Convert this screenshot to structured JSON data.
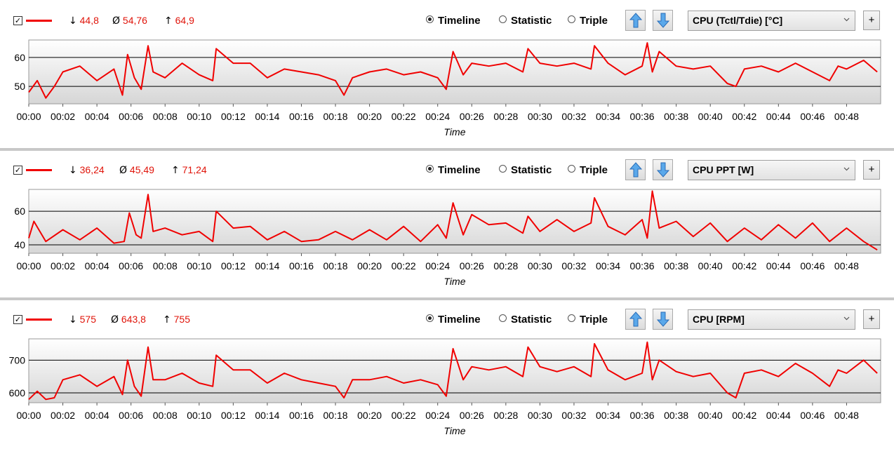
{
  "icons": {
    "checkbox": "check-icon",
    "up": "arrow-up-icon",
    "down": "arrow-down-icon",
    "dropdown": "chevron-down-icon"
  },
  "colors": {
    "series": "#f00000",
    "stat_values": "#e0140a"
  },
  "panels": [
    {
      "id": "cpu-temp",
      "stats": {
        "min_symbol": "↓",
        "min": "44,8",
        "avg_symbol": "Ø",
        "avg": "54,76",
        "max_symbol": "↑",
        "max": "64,9"
      },
      "modes": [
        {
          "label": "Timeline",
          "selected": true
        },
        {
          "label": "Statistic",
          "selected": false
        },
        {
          "label": "Triple",
          "selected": false
        }
      ],
      "sensor": "CPU (Tctl/Tdie) [°C]",
      "add_label": "+"
    },
    {
      "id": "cpu-ppt",
      "stats": {
        "min_symbol": "↓",
        "min": "36,24",
        "avg_symbol": "Ø",
        "avg": "45,49",
        "max_symbol": "↑",
        "max": "71,24"
      },
      "modes": [
        {
          "label": "Timeline",
          "selected": true
        },
        {
          "label": "Statistic",
          "selected": false
        },
        {
          "label": "Triple",
          "selected": false
        }
      ],
      "sensor": "CPU PPT [W]",
      "add_label": "+"
    },
    {
      "id": "cpu-rpm",
      "stats": {
        "min_symbol": "↓",
        "min": "575",
        "avg_symbol": "Ø",
        "avg": "643,8",
        "max_symbol": "↑",
        "max": "755"
      },
      "modes": [
        {
          "label": "Timeline",
          "selected": true
        },
        {
          "label": "Statistic",
          "selected": false
        },
        {
          "label": "Triple",
          "selected": false
        }
      ],
      "sensor": "CPU [RPM]",
      "add_label": "+"
    }
  ],
  "chart_data": [
    {
      "type": "line",
      "xlabel": "Time",
      "x_ticks": [
        "00:00",
        "00:02",
        "00:04",
        "00:06",
        "00:08",
        "00:10",
        "00:12",
        "00:14",
        "00:16",
        "00:18",
        "00:20",
        "00:22",
        "00:24",
        "00:26",
        "00:28",
        "00:30",
        "00:32",
        "00:34",
        "00:36",
        "00:38",
        "00:40",
        "00:42",
        "00:44",
        "00:46",
        "00:48"
      ],
      "xlim_minutes": [
        0,
        50
      ],
      "y_ticks": [
        50,
        60
      ],
      "ylim": [
        44,
        66
      ],
      "series": [
        {
          "color": "#f00000",
          "x_minutes": [
            0,
            0.5,
            1,
            1.5,
            2,
            3,
            4,
            5,
            5.5,
            5.8,
            6.2,
            6.6,
            7,
            7.3,
            8,
            9,
            10,
            10.8,
            11,
            12,
            13,
            14,
            15,
            16,
            17,
            18,
            18.5,
            19,
            20,
            21,
            22,
            23,
            24,
            24.5,
            24.9,
            25.5,
            26,
            27,
            28,
            29,
            29.3,
            30,
            31,
            32,
            33,
            33.2,
            34,
            35,
            36,
            36.3,
            36.6,
            37,
            38,
            39,
            40,
            41,
            41.5,
            42,
            43,
            44,
            45,
            46,
            47,
            47.5,
            48,
            49,
            49.8
          ],
          "values": [
            48,
            52,
            46,
            50,
            55,
            57,
            52,
            56,
            47,
            61,
            53,
            49,
            64,
            55,
            53,
            58,
            54,
            52,
            63,
            58,
            58,
            53,
            56,
            55,
            54,
            52,
            47,
            53,
            55,
            56,
            54,
            55,
            53,
            49,
            62,
            54,
            58,
            57,
            58,
            55,
            63,
            58,
            57,
            58,
            56,
            64,
            58,
            54,
            57,
            65,
            55,
            62,
            57,
            56,
            57,
            51,
            50,
            56,
            57,
            55,
            58,
            55,
            52,
            57,
            56,
            59,
            55
          ]
        }
      ]
    },
    {
      "type": "line",
      "xlabel": "Time",
      "x_ticks": [
        "00:00",
        "00:02",
        "00:04",
        "00:06",
        "00:08",
        "00:10",
        "00:12",
        "00:14",
        "00:16",
        "00:18",
        "00:20",
        "00:22",
        "00:24",
        "00:26",
        "00:28",
        "00:30",
        "00:32",
        "00:34",
        "00:36",
        "00:38",
        "00:40",
        "00:42",
        "00:44",
        "00:46",
        "00:48"
      ],
      "xlim_minutes": [
        0,
        50
      ],
      "y_ticks": [
        40,
        60
      ],
      "ylim": [
        35,
        73
      ],
      "series": [
        {
          "color": "#f00000",
          "x_minutes": [
            0,
            0.3,
            1,
            2,
            3,
            4,
            5,
            5.6,
            5.9,
            6.3,
            6.6,
            7,
            7.3,
            8,
            9,
            10,
            10.8,
            11,
            12,
            13,
            14,
            15,
            16,
            17,
            18,
            19,
            20,
            21,
            22,
            23,
            24,
            24.5,
            24.9,
            25.5,
            26,
            27,
            28,
            29,
            29.3,
            30,
            31,
            32,
            33,
            33.2,
            34,
            35,
            36,
            36.3,
            36.6,
            37,
            38,
            39,
            40,
            41,
            42,
            43,
            44,
            45,
            46,
            47,
            48,
            49,
            49.8
          ],
          "values": [
            44,
            54,
            42,
            49,
            43,
            50,
            41,
            42,
            59,
            46,
            44,
            70,
            48,
            50,
            46,
            48,
            42,
            60,
            50,
            51,
            43,
            48,
            42,
            43,
            48,
            43,
            49,
            43,
            51,
            42,
            52,
            44,
            65,
            46,
            58,
            52,
            53,
            47,
            57,
            48,
            55,
            48,
            53,
            68,
            51,
            46,
            55,
            44,
            72,
            50,
            54,
            45,
            53,
            42,
            50,
            43,
            52,
            44,
            53,
            42,
            50,
            42,
            37
          ]
        }
      ]
    },
    {
      "type": "line",
      "xlabel": "Time",
      "x_ticks": [
        "00:00",
        "00:02",
        "00:04",
        "00:06",
        "00:08",
        "00:10",
        "00:12",
        "00:14",
        "00:16",
        "00:18",
        "00:20",
        "00:22",
        "00:24",
        "00:26",
        "00:28",
        "00:30",
        "00:32",
        "00:34",
        "00:36",
        "00:38",
        "00:40",
        "00:42",
        "00:44",
        "00:46",
        "00:48"
      ],
      "xlim_minutes": [
        0,
        50
      ],
      "y_ticks": [
        600,
        700
      ],
      "ylim": [
        570,
        765
      ],
      "series": [
        {
          "color": "#f00000",
          "x_minutes": [
            0,
            0.5,
            1,
            1.5,
            2,
            3,
            4,
            5,
            5.5,
            5.8,
            6.2,
            6.6,
            7,
            7.3,
            8,
            9,
            10,
            10.8,
            11,
            12,
            13,
            14,
            15,
            16,
            17,
            18,
            18.5,
            19,
            20,
            21,
            22,
            23,
            24,
            24.5,
            24.9,
            25.5,
            26,
            27,
            28,
            29,
            29.3,
            30,
            31,
            32,
            33,
            33.2,
            34,
            35,
            36,
            36.3,
            36.6,
            37,
            38,
            39,
            40,
            41,
            41.5,
            42,
            43,
            44,
            45,
            46,
            47,
            47.5,
            48,
            49,
            49.8
          ],
          "values": [
            580,
            605,
            580,
            585,
            640,
            655,
            620,
            650,
            595,
            700,
            620,
            590,
            740,
            640,
            640,
            660,
            630,
            620,
            715,
            670,
            670,
            630,
            660,
            640,
            630,
            620,
            585,
            640,
            640,
            650,
            630,
            640,
            625,
            590,
            735,
            640,
            680,
            670,
            680,
            650,
            740,
            680,
            665,
            680,
            650,
            750,
            670,
            640,
            660,
            755,
            640,
            700,
            665,
            650,
            660,
            600,
            585,
            660,
            670,
            650,
            690,
            660,
            620,
            670,
            660,
            700,
            660
          ]
        }
      ]
    }
  ]
}
